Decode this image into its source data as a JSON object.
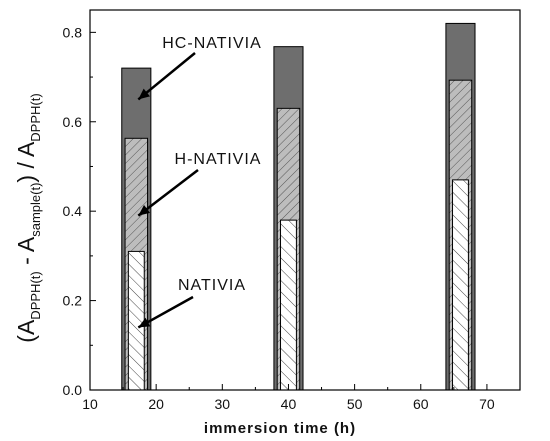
{
  "chart_data": {
    "type": "bar",
    "x": [
      17,
      40,
      66
    ],
    "series": [
      {
        "name": "HC-NATIVIA",
        "values": [
          0.72,
          0.768,
          0.82
        ],
        "color": "#6e6e6e",
        "pattern": "solid"
      },
      {
        "name": "H-NATIVIA",
        "values": [
          0.563,
          0.63,
          0.693
        ],
        "color": "#bdbdbd",
        "pattern": "hatch-dense"
      },
      {
        "name": "NATIVIA",
        "values": [
          0.31,
          0.38,
          0.47
        ],
        "color": "#ffffff",
        "pattern": "hatch-sparse"
      }
    ],
    "xlim": [
      10,
      75
    ],
    "ylim": [
      0,
      0.85
    ],
    "xticks": [
      "10",
      "20",
      "30",
      "40",
      "50",
      "60",
      "70"
    ],
    "yticks": [
      "0.0",
      "0.2",
      "0.4",
      "0.6",
      "0.8"
    ],
    "xlabel": "immersion time (h)",
    "ylabel": {
      "p1": "(A",
      "s1": "DPPH(t)",
      "p2": " - A",
      "s2": "sample(t)",
      "p3": ") / A",
      "s3": "DPPH(t)"
    },
    "annotations": [
      {
        "text": "HC-NATIVIA",
        "target_x": 17,
        "target_y": 0.65
      },
      {
        "text": "H-NATIVIA",
        "target_x": 17,
        "target_y": 0.39
      },
      {
        "text": "NATIVIA",
        "target_x": 17,
        "target_y": 0.14
      }
    ]
  }
}
